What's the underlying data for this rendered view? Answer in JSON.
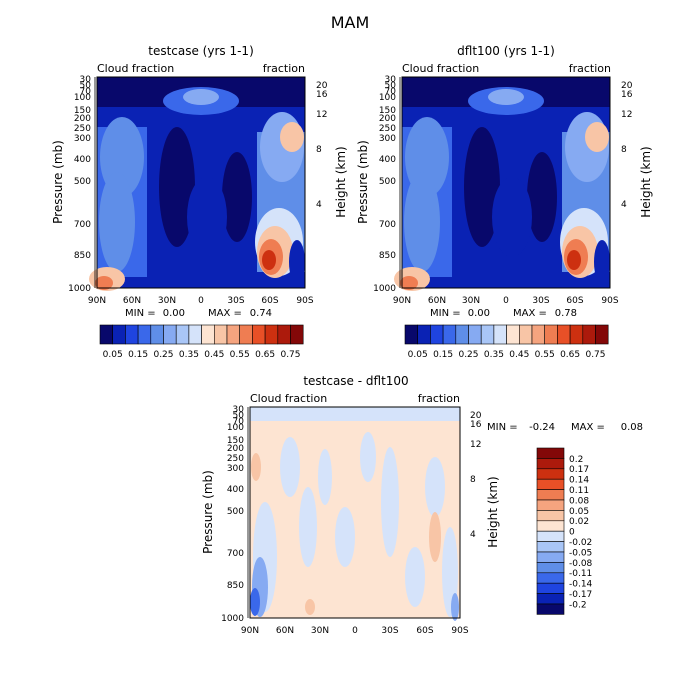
{
  "figure_title": "MAM",
  "colors": {
    "ramp": [
      "#08086b",
      "#0a22b4",
      "#1f44e0",
      "#3a68ea",
      "#5f8ee8",
      "#86aaf2",
      "#a9c6f7",
      "#d5e3fa",
      "#fde4d2",
      "#f8c5a6",
      "#f5a47f",
      "#ef7d52",
      "#e85027",
      "#cd3010",
      "#ac1a0c",
      "#830808"
    ]
  },
  "chart_data": [
    {
      "type": "heatmap",
      "title": "testcase (yrs 1-1)",
      "subtitle_left": "Cloud fraction",
      "subtitle_right": "fraction",
      "ylabel": "Pressure (mb)",
      "ylabel_right": "Height (km)",
      "xticks": [
        "90N",
        "60N",
        "30N",
        "0",
        "30S",
        "60S",
        "90S"
      ],
      "yticks": [
        "30",
        "50",
        "70",
        "100",
        "150",
        "200",
        "250",
        "300",
        "400",
        "500",
        "700",
        "850",
        "1000"
      ],
      "yticks_right": [
        "20",
        "16",
        "12",
        "8",
        "4"
      ],
      "min_label": "MIN =",
      "min_value": "0.00",
      "max_label": "MAX =",
      "max_value": "0.74",
      "colorbar_labels": [
        "0.05",
        "0.15",
        "0.25",
        "0.35",
        "0.45",
        "0.55",
        "0.65",
        "0.75"
      ],
      "zlim": [
        0,
        0.8
      ]
    },
    {
      "type": "heatmap",
      "title": "dflt100 (yrs 1-1)",
      "subtitle_left": "Cloud fraction",
      "subtitle_right": "fraction",
      "ylabel": "Pressure (mb)",
      "ylabel_right": "Height (km)",
      "xticks": [
        "90N",
        "60N",
        "30N",
        "0",
        "30S",
        "60S",
        "90S"
      ],
      "yticks": [
        "30",
        "50",
        "70",
        "100",
        "150",
        "200",
        "250",
        "300",
        "400",
        "500",
        "700",
        "850",
        "1000"
      ],
      "yticks_right": [
        "20",
        "16",
        "12",
        "8",
        "4"
      ],
      "min_label": "MIN =",
      "min_value": "0.00",
      "max_label": "MAX =",
      "max_value": "0.78",
      "colorbar_labels": [
        "0.05",
        "0.15",
        "0.25",
        "0.35",
        "0.45",
        "0.55",
        "0.65",
        "0.75"
      ],
      "zlim": [
        0,
        0.8
      ]
    },
    {
      "type": "heatmap",
      "title": "testcase - dflt100",
      "subtitle_left": "Cloud fraction",
      "subtitle_right": "fraction",
      "ylabel": "Pressure (mb)",
      "ylabel_right": "Height (km)",
      "xticks": [
        "90N",
        "60N",
        "30N",
        "0",
        "30S",
        "60S",
        "90S"
      ],
      "yticks": [
        "30",
        "50",
        "70",
        "100",
        "150",
        "200",
        "250",
        "300",
        "400",
        "500",
        "700",
        "850",
        "1000"
      ],
      "yticks_right": [
        "20",
        "16",
        "12",
        "8",
        "4"
      ],
      "min_label": "MIN =",
      "min_value": "-0.24",
      "max_label": "MAX =",
      "max_value": "0.08",
      "colorbar_labels": [
        "0.2",
        "0.17",
        "0.14",
        "0.11",
        "0.08",
        "0.05",
        "0.02",
        "0",
        "-0.02",
        "-0.05",
        "-0.08",
        "-0.11",
        "-0.14",
        "-0.17",
        "-0.2"
      ],
      "zlim": [
        -0.2,
        0.2
      ]
    }
  ]
}
